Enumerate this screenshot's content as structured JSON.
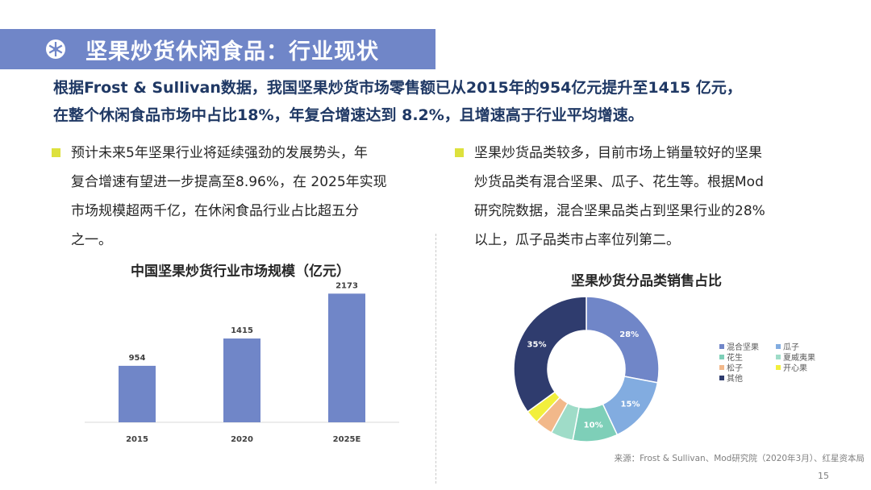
{
  "header": {
    "title": "坚果炒货休闲食品：行业现状"
  },
  "summary": {
    "line1": "根据Frost & Sullivan数据，我国坚果炒货市场零售额已从2015年的954亿元提升至1415 亿元，",
    "line2": "在整个休闲食品市场中占比18%，年复合增速达到 8.2%，且增速高于行业平均增速。"
  },
  "bullets": {
    "left": [
      "预计未来5年坚果行业将延续强劲的发展势头，年",
      "复合增速有望进一步提高至8.96%，在 2025年实现",
      "市场规模超两千亿，在休闲食品行业占比超五分",
      "之一。"
    ],
    "right": [
      "坚果炒货品类较多，目前市场上销量较好的坚果",
      "炒货品类有混合坚果、瓜子、花生等。根据Mod",
      "研究院数据，混合坚果品类占到坚果行业的28%",
      "以上，瓜子品类市占率位列第二。"
    ]
  },
  "colors": {
    "title_band": "#7086c8",
    "bullet": "#dde13d",
    "bar": "#7086c8"
  },
  "chart_data": [
    {
      "type": "bar",
      "title": "中国坚果炒货行业市场规模（亿元）",
      "categories": [
        "2015",
        "2020",
        "2025E"
      ],
      "values": [
        954,
        1415,
        2173
      ],
      "data_labels": [
        "954",
        "1415",
        "2173"
      ],
      "xlabel": "",
      "ylabel": "",
      "ylim": [
        0,
        2300
      ],
      "grid": false,
      "legend": "none"
    },
    {
      "type": "pie",
      "title": "坚果炒货分品类销售占比",
      "donut": true,
      "series": [
        {
          "name": "混合坚果",
          "value": 28,
          "label": "28%",
          "color": "#7086c8"
        },
        {
          "name": "瓜子",
          "value": 15,
          "label": "15%",
          "color": "#82ace0"
        },
        {
          "name": "花生",
          "value": 10,
          "label": "10%",
          "color": "#7ecfb8"
        },
        {
          "name": "夏威夷果",
          "value": 5,
          "label": "",
          "color": "#9fdcc8"
        },
        {
          "name": "松子",
          "value": 4,
          "label": "",
          "color": "#f2b88a"
        },
        {
          "name": "开心果",
          "value": 3,
          "label": "",
          "color": "#f2ef3c"
        },
        {
          "name": "其他",
          "value": 35,
          "label": "35%",
          "color": "#2f3c6e"
        }
      ],
      "legend": "right"
    }
  ],
  "footer": {
    "source": "来源：Frost & Sullivan、Mod研究院（2020年3月）、红星资本局",
    "page": "15"
  }
}
